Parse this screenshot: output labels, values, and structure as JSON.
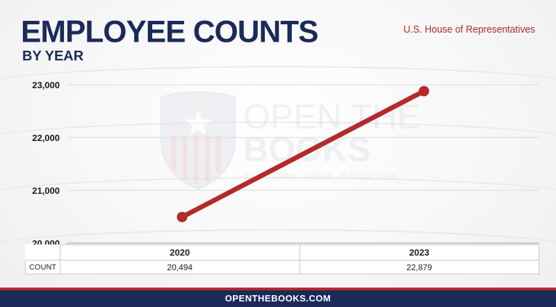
{
  "header": {
    "title": "EMPLOYEE COUNTS",
    "subtitle": "BY YEAR",
    "organization": "U.S. House of Representatives"
  },
  "watermark": {
    "line1": "OPEN THE",
    "line2": "BOOKS",
    "tm": "™",
    "tagline": "Every Dime. Online. In Real Time."
  },
  "chart_data": {
    "type": "line",
    "categories": [
      "2020",
      "2023"
    ],
    "series": [
      {
        "values": [
          20494,
          22879
        ]
      }
    ],
    "ylim": [
      20000,
      23000
    ],
    "yticks": [
      20000,
      21000,
      22000,
      23000
    ],
    "ytick_labels": [
      "20,000",
      "21,000",
      "22,000",
      "23,000"
    ],
    "grid": true,
    "line_color": "#b32a2a",
    "table": {
      "row_label": "COUNT",
      "values": [
        "20,494",
        "22,879"
      ]
    }
  },
  "footer": {
    "site": "OPENTHEBOOKS.COM"
  },
  "colors": {
    "navy": "#1b2a59",
    "red": "#b32a2a"
  }
}
